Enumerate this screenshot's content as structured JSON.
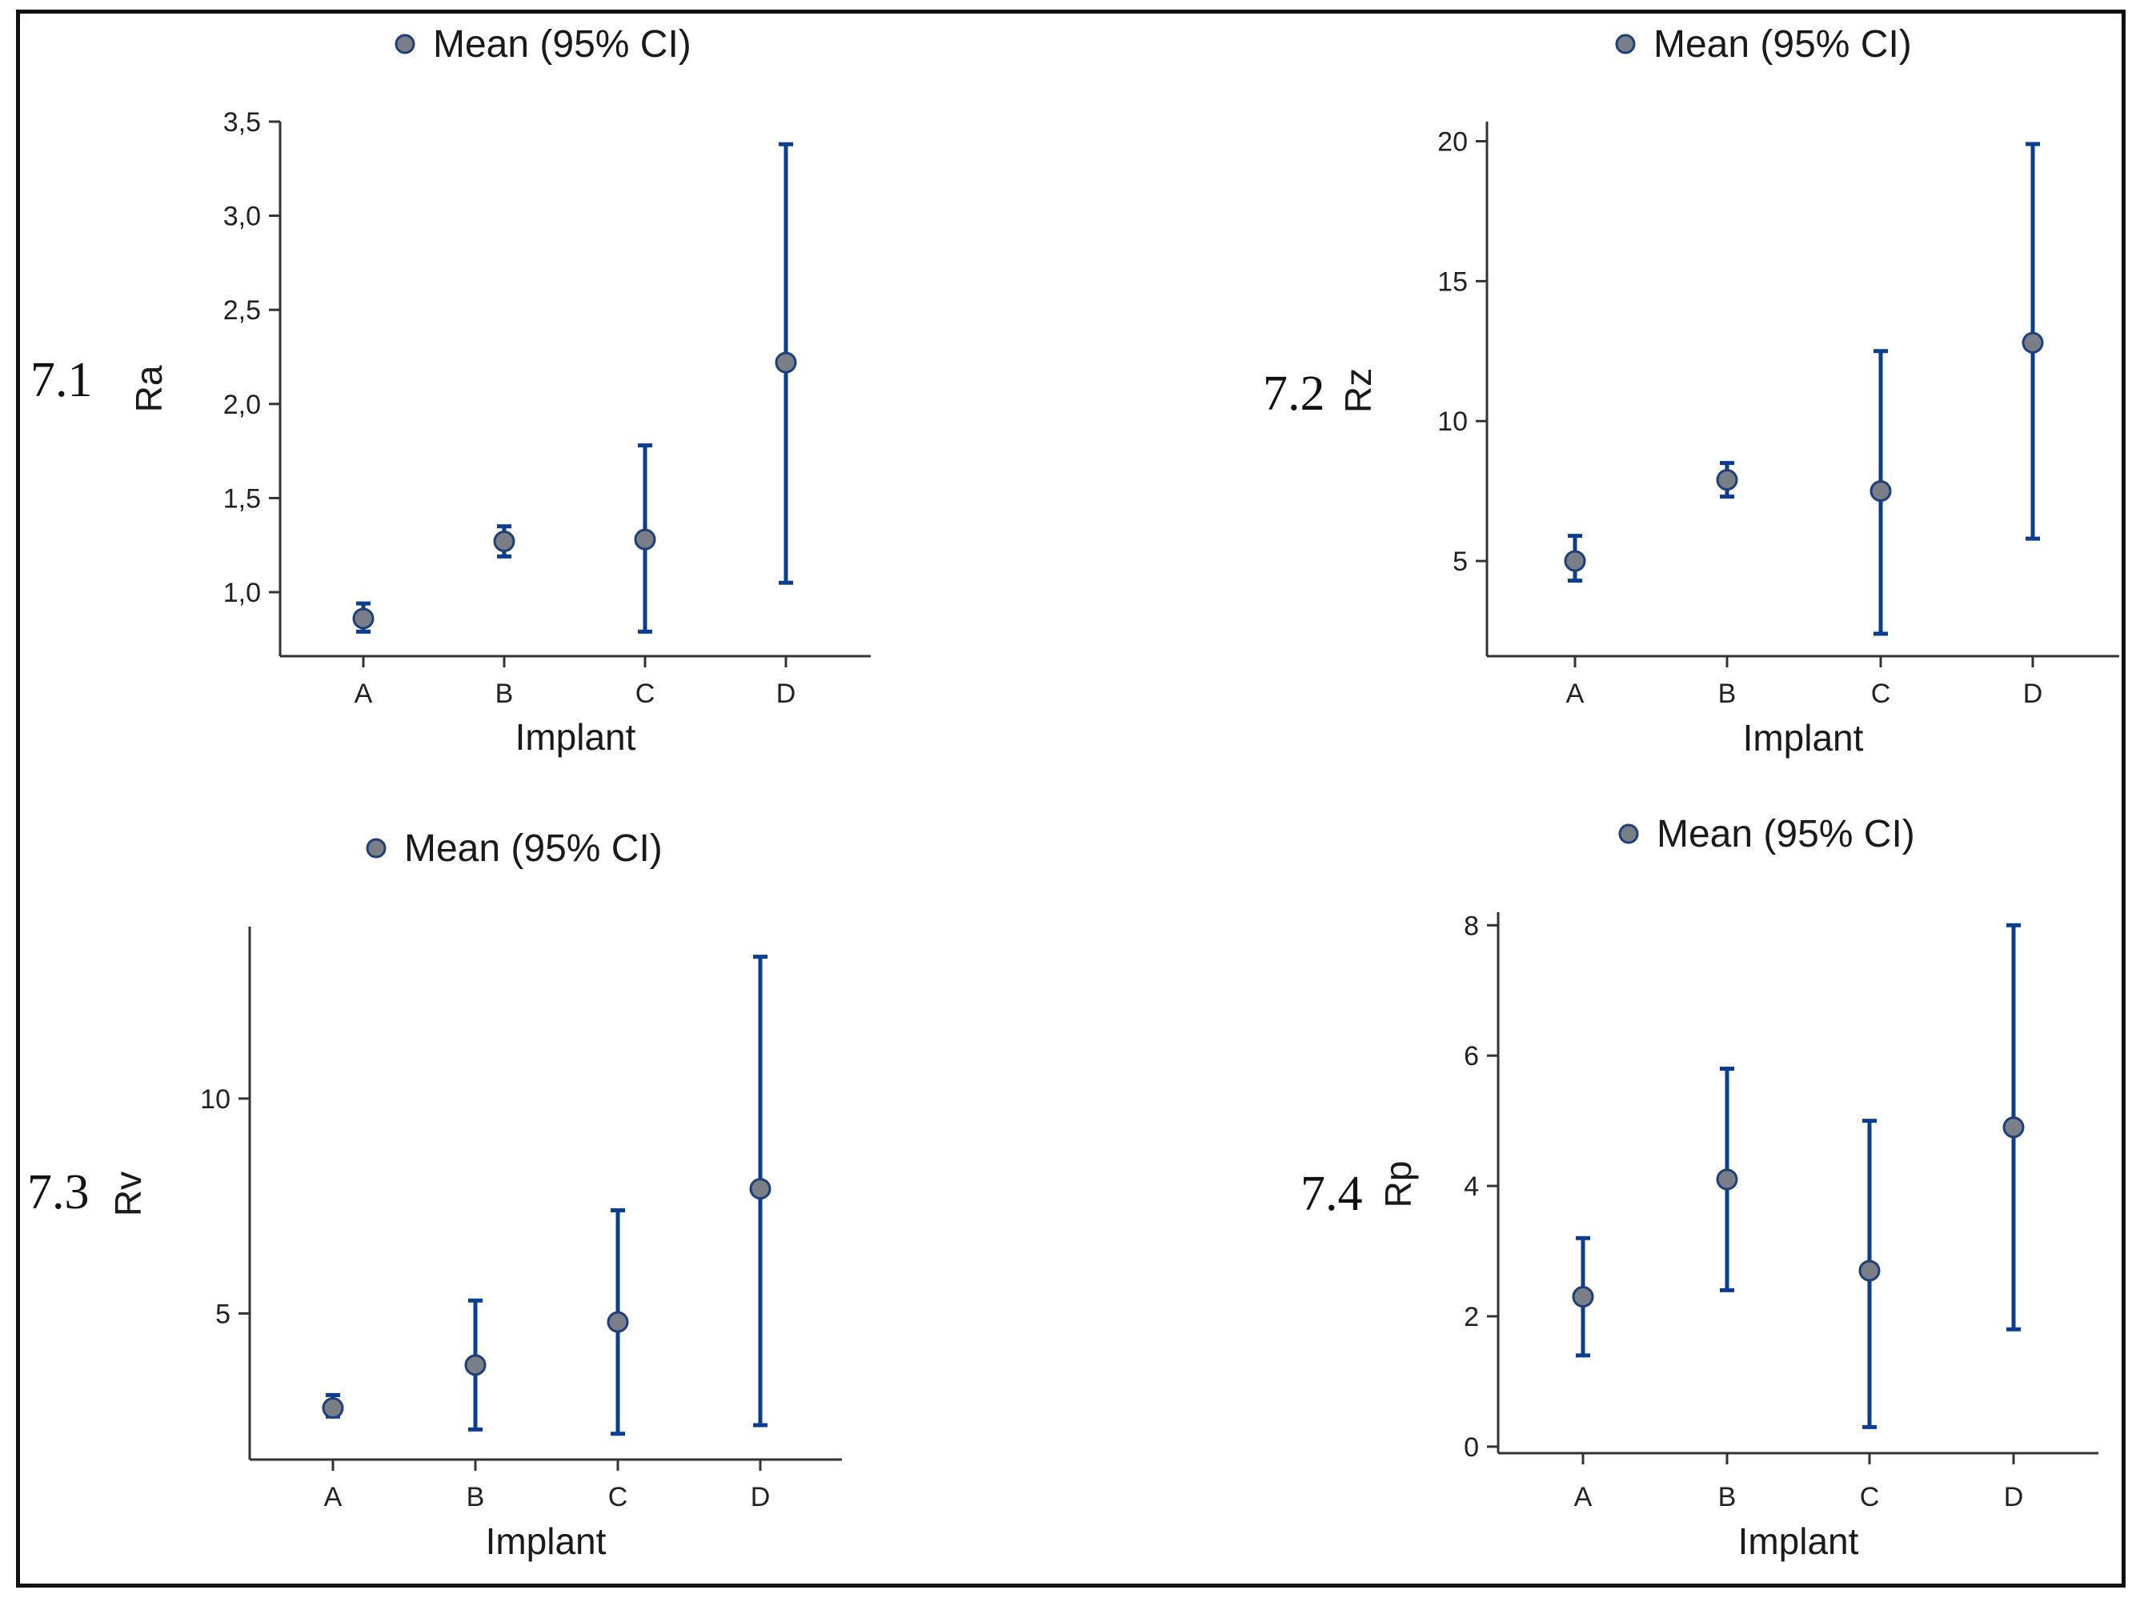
{
  "colors": {
    "ci_line": "#0b3d91",
    "marker_fill": "#7a7f87",
    "marker_stroke": "#1f3f7a",
    "axis": "#333333",
    "frame": "#111111"
  },
  "chart_data": [
    {
      "id": "7.1",
      "type": "errorbar",
      "legend": "Mean (95% CI)",
      "xlabel": "Implant",
      "ylabel": "Ra",
      "categories": [
        "A",
        "B",
        "C",
        "D"
      ],
      "mean": [
        0.86,
        1.27,
        1.28,
        2.22
      ],
      "ci_lower": [
        0.79,
        1.19,
        0.79,
        1.05
      ],
      "ci_upper": [
        0.94,
        1.35,
        1.78,
        3.38
      ],
      "yticks": [
        1.0,
        1.5,
        2.0,
        2.5,
        3.0,
        3.5
      ],
      "ytick_labels": [
        "1,0",
        "1,5",
        "2,0",
        "2,5",
        "3,0",
        "3,5"
      ],
      "ylim": [
        0.66,
        3.5
      ]
    },
    {
      "id": "7.2",
      "type": "errorbar",
      "legend": "Mean (95% CI)",
      "xlabel": "Implant",
      "ylabel": "Rz",
      "categories": [
        "A",
        "B",
        "C",
        "D"
      ],
      "mean": [
        5.0,
        7.9,
        7.5,
        12.8
      ],
      "ci_lower": [
        4.3,
        7.3,
        2.4,
        5.8
      ],
      "ci_upper": [
        5.9,
        8.5,
        12.5,
        19.9
      ],
      "yticks": [
        5,
        10,
        15,
        20
      ],
      "ytick_labels": [
        "5",
        "10",
        "15",
        "20"
      ],
      "ylim": [
        1.6,
        20.7
      ]
    },
    {
      "id": "7.3",
      "type": "errorbar",
      "legend": "Mean (95% CI)",
      "xlabel": "Implant",
      "ylabel": "Rv",
      "categories": [
        "A",
        "B",
        "C",
        "D"
      ],
      "mean": [
        2.8,
        3.8,
        4.8,
        7.9
      ],
      "ci_lower": [
        2.6,
        2.3,
        2.2,
        2.4
      ],
      "ci_upper": [
        3.1,
        5.3,
        7.4,
        13.3
      ],
      "yticks": [
        5,
        10
      ],
      "ytick_labels": [
        "5",
        "10"
      ],
      "ylim": [
        1.6,
        14.0
      ]
    },
    {
      "id": "7.4",
      "type": "errorbar",
      "legend": "Mean (95% CI)",
      "xlabel": "Implant",
      "ylabel": "Rp",
      "categories": [
        "A",
        "B",
        "C",
        "D"
      ],
      "mean": [
        2.3,
        4.1,
        2.7,
        4.9
      ],
      "ci_lower": [
        1.4,
        2.4,
        0.3,
        1.8
      ],
      "ci_upper": [
        3.2,
        5.8,
        5.0,
        8.0
      ],
      "yticks": [
        0,
        2,
        4,
        6,
        8
      ],
      "ytick_labels": [
        "0",
        "2",
        "4",
        "6",
        "8"
      ],
      "ylim": [
        -0.1,
        8.2
      ]
    }
  ]
}
